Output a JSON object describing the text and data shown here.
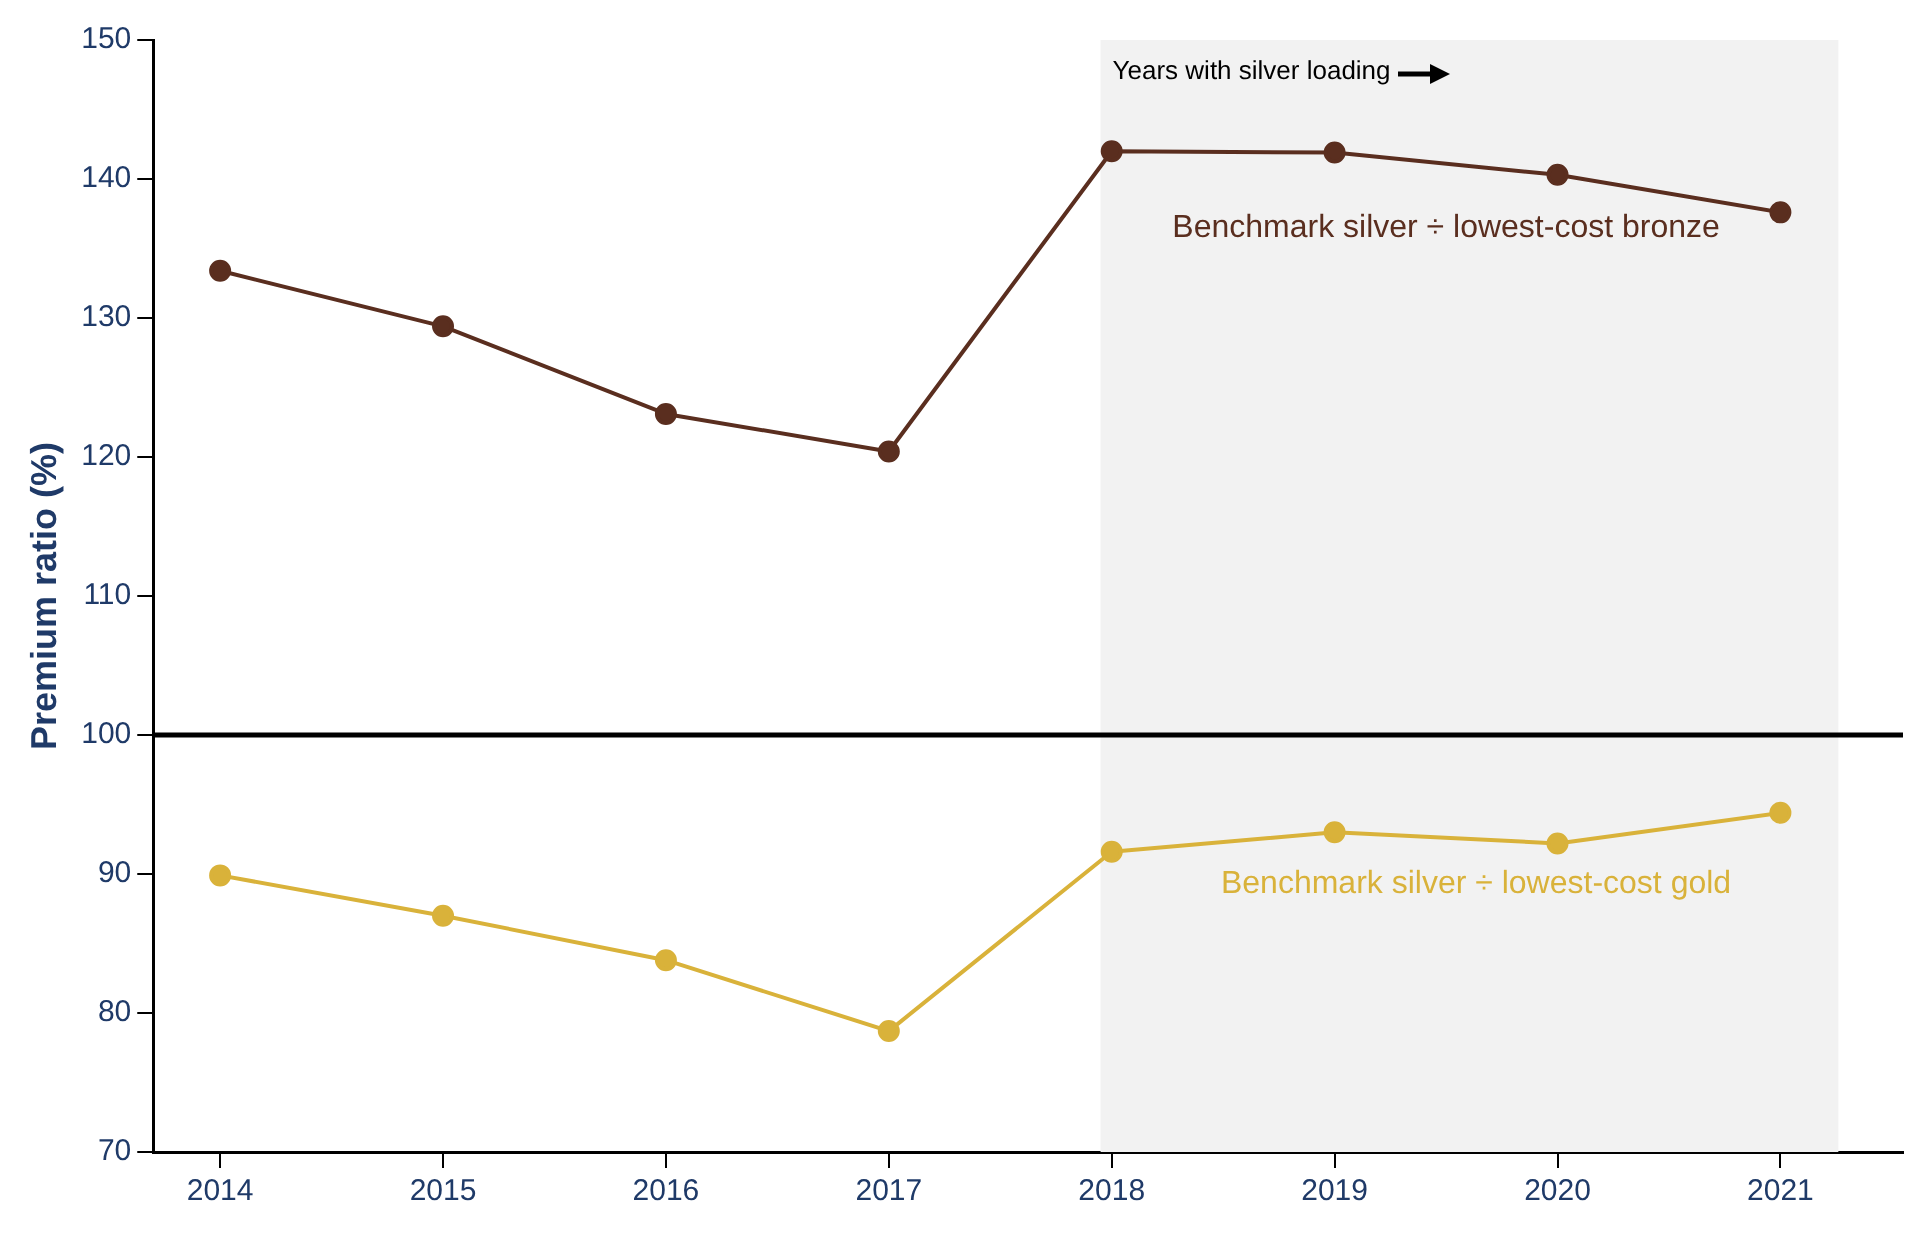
{
  "chart_data": {
    "type": "line",
    "ylabel": "Premium ratio (%)",
    "x": [
      2014,
      2015,
      2016,
      2017,
      2018,
      2019,
      2020,
      2021
    ],
    "series": [
      {
        "name": "Benchmark silver ÷ lowest-cost bronze",
        "color": "#5a2e1f",
        "values": [
          133.4,
          129.4,
          123.1,
          120.4,
          142.0,
          141.9,
          140.3,
          137.6
        ]
      },
      {
        "name": "Benchmark silver ÷ lowest-cost gold",
        "color": "#d9b23a",
        "values": [
          89.9,
          87.0,
          83.8,
          78.7,
          91.6,
          93.0,
          92.2,
          94.4
        ]
      }
    ],
    "xlim": [
      2013.7,
      2021.55
    ],
    "xticks": [
      2014,
      2015,
      2016,
      2017,
      2018,
      2019,
      2020,
      2021
    ],
    "ylim": [
      70,
      150
    ],
    "yticks": [
      70,
      80,
      90,
      100,
      110,
      120,
      130,
      140,
      150
    ],
    "ref_lines": [
      {
        "axis": "y",
        "value": 100,
        "color": "#000000"
      }
    ],
    "bands": [
      {
        "axis": "x",
        "from": 2017.95,
        "to": 2021.26,
        "label": "Years with silver loading",
        "color": "#f2f2f2"
      }
    ],
    "grid": false,
    "legend": false,
    "marker": "circle",
    "line_style": "solid"
  }
}
